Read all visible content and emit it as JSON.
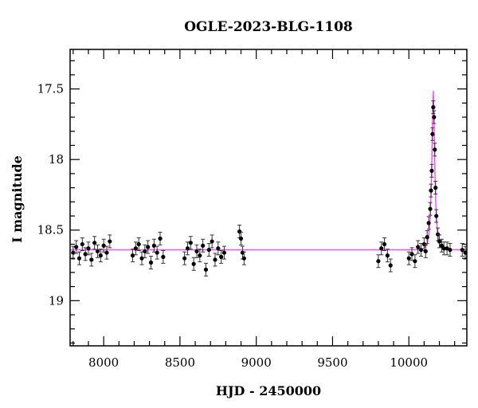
{
  "chart_data": {
    "type": "scatter",
    "title": "OGLE-2023-BLG-1108",
    "xlabel": "HJD - 2450000",
    "ylabel": "I magnitude",
    "xlim": [
      7780,
      10380
    ],
    "ylim": [
      19.32,
      17.22
    ],
    "y_inverted": true,
    "x_major_ticks": [
      8000,
      8500,
      9000,
      9500,
      10000
    ],
    "y_major_ticks": [
      17.5,
      18,
      18.5,
      19
    ],
    "x_tick_labels": [
      "8000",
      "8500",
      "9000",
      "9500",
      "10000"
    ],
    "y_tick_labels": [
      "17.5",
      "18",
      "18.5",
      "19"
    ],
    "grid": false,
    "legend": "none",
    "colors": {
      "data": "#000000",
      "model": "#ff44ff",
      "frame": "#000000"
    },
    "model": {
      "type": "point-lens microlensing fit",
      "t0": 10160,
      "u0": 0.37,
      "tE": 18,
      "baseline_mag": 18.64
    },
    "series": [
      {
        "x": [
          7800,
          7820,
          7840,
          7860,
          7880,
          7900,
          7920,
          7940,
          7960,
          7980,
          8000,
          8020,
          8040,
          8190,
          8210,
          8230,
          8250,
          8270,
          8290,
          8310,
          8330,
          8350,
          8370,
          8390,
          8530,
          8550,
          8570,
          8590,
          8610,
          8630,
          8650,
          8670,
          8690,
          8710,
          8730,
          8750,
          8770,
          8790,
          8890,
          8900,
          8910,
          8920,
          9800,
          9820,
          9840,
          9860,
          9880,
          10000,
          10020,
          10040,
          10060,
          10080,
          10100,
          10110,
          10120,
          10130,
          10140,
          10145,
          10150,
          10155,
          10160,
          10165,
          10170,
          10175,
          10180,
          10190,
          10200,
          10215,
          10230,
          10250,
          10270,
          10350,
          10370
        ],
        "y": [
          18.66,
          18.62,
          18.7,
          18.6,
          18.67,
          18.63,
          18.71,
          18.59,
          18.65,
          18.68,
          18.61,
          18.66,
          18.58,
          18.68,
          18.63,
          18.6,
          18.7,
          18.65,
          18.62,
          18.73,
          18.61,
          18.66,
          18.56,
          18.69,
          18.7,
          18.63,
          18.59,
          18.74,
          18.65,
          18.68,
          18.61,
          18.78,
          18.64,
          18.58,
          18.71,
          18.63,
          18.69,
          18.66,
          18.51,
          18.56,
          18.66,
          18.7,
          18.72,
          18.63,
          18.6,
          18.68,
          18.75,
          18.7,
          18.67,
          18.72,
          18.62,
          18.64,
          18.6,
          18.65,
          18.55,
          18.45,
          18.35,
          18.22,
          18.08,
          17.82,
          17.63,
          17.7,
          17.93,
          18.2,
          18.4,
          18.53,
          18.58,
          18.61,
          18.63,
          18.63,
          18.64,
          18.64,
          18.66
        ]
      }
    ]
  }
}
